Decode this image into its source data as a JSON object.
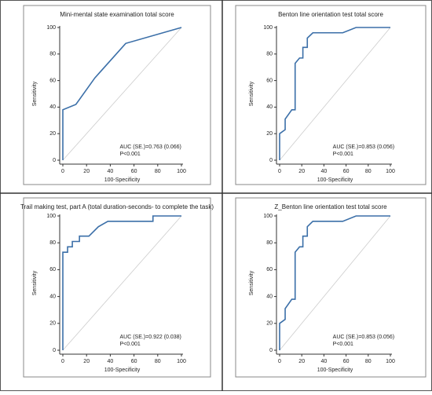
{
  "chart_data": [
    {
      "type": "line",
      "title": "Mini-mental state examination total score",
      "x_label": "100-Specificity",
      "y_label": "Sensitivity",
      "x": [
        0,
        0,
        11,
        27,
        53,
        100
      ],
      "values": [
        0,
        38,
        42,
        62,
        88,
        100
      ],
      "color": "#3b6fa8",
      "xlim": [
        0,
        100
      ],
      "ylim": [
        0,
        100
      ],
      "xticks": [
        0,
        20,
        40,
        60,
        80,
        100
      ],
      "yticks": [
        0,
        20,
        40,
        60,
        80,
        100
      ],
      "annotations": [
        "AUC (SE.)=0.763 (0.066)",
        "P<0.001"
      ]
    },
    {
      "type": "line",
      "title": "Benton line orientation test total score",
      "x_label": "100-Specificity",
      "y_label": "Sensitivity",
      "x": [
        0,
        0,
        5,
        5,
        11,
        14,
        14,
        18,
        21,
        21,
        25,
        25,
        30,
        57,
        69,
        100
      ],
      "values": [
        0,
        20,
        23,
        31,
        38,
        38,
        73,
        77,
        77,
        85,
        85,
        92,
        96,
        96,
        100,
        100
      ],
      "color": "#3b6fa8",
      "xlim": [
        0,
        100
      ],
      "ylim": [
        0,
        100
      ],
      "xticks": [
        0,
        20,
        40,
        60,
        80,
        100
      ],
      "yticks": [
        0,
        20,
        40,
        60,
        80,
        100
      ],
      "annotations": [
        "AUC (SE.)=0.853 (0.056)",
        "P<0.001"
      ]
    },
    {
      "type": "line",
      "title": "Trail making test, part A (total duration-seconds- to complete the task)",
      "x_label": "100-Specificity",
      "y_label": "Sensitivity",
      "x": [
        0,
        0,
        4,
        4,
        8,
        8,
        14,
        14,
        22,
        30,
        38,
        76,
        76,
        100
      ],
      "values": [
        0,
        73,
        73,
        77,
        77,
        81,
        81,
        85,
        85,
        92,
        96,
        96,
        100,
        100
      ],
      "color": "#3b6fa8",
      "xlim": [
        0,
        100
      ],
      "ylim": [
        0,
        100
      ],
      "xticks": [
        0,
        20,
        40,
        60,
        80,
        100
      ],
      "yticks": [
        0,
        20,
        40,
        60,
        80,
        100
      ],
      "annotations": [
        "AUC (SE.)=0.922 (0.038)",
        "P<0.001"
      ]
    },
    {
      "type": "line",
      "title": "Z_Benton line orientation test total score",
      "x_label": "100-Specificity",
      "y_label": "Sensitivity",
      "x": [
        0,
        0,
        5,
        5,
        11,
        14,
        14,
        18,
        21,
        21,
        25,
        25,
        30,
        57,
        69,
        100
      ],
      "values": [
        0,
        20,
        23,
        31,
        38,
        38,
        73,
        77,
        77,
        85,
        85,
        92,
        96,
        96,
        100,
        100
      ],
      "color": "#3b6fa8",
      "xlim": [
        0,
        100
      ],
      "ylim": [
        0,
        100
      ],
      "xticks": [
        0,
        20,
        40,
        60,
        80,
        100
      ],
      "yticks": [
        0,
        20,
        40,
        60,
        80,
        100
      ],
      "annotations": [
        "AUC (SE.)=0.853 (0.056)",
        "P<0.001"
      ]
    }
  ]
}
